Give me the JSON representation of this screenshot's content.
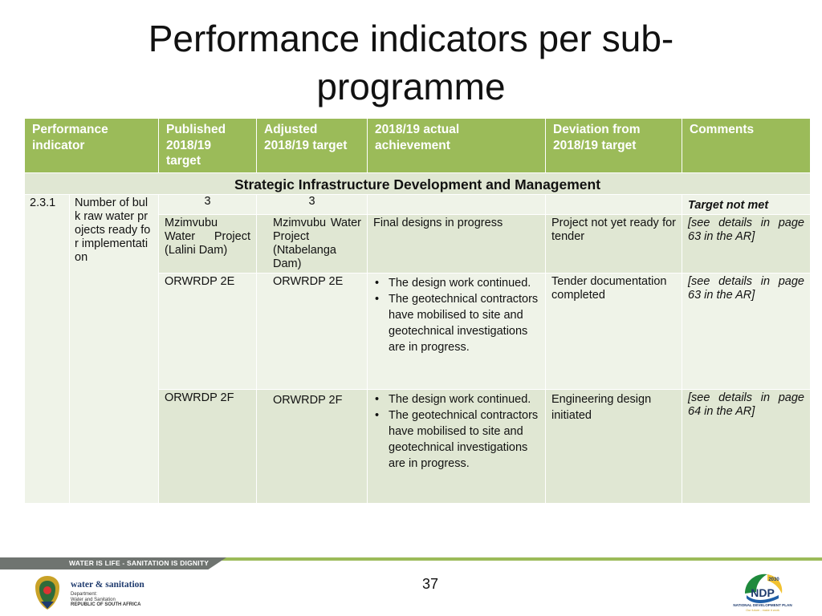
{
  "title": "Performance indicators per sub-programme",
  "table": {
    "headers": [
      "Performance indicator",
      "Published 2018/19 target",
      "Adjusted 2018/19 target",
      "2018/19 actual achievement",
      "Deviation from 2018/19 target",
      "Comments"
    ],
    "section_heading": "Strategic Infrastructure Development and Management",
    "indicator_number": "2.3.1",
    "indicator_name": "Number of bulk raw water projects ready for implementation",
    "summary_row": {
      "published": "3",
      "adjusted": "3",
      "comment": "Target not met"
    },
    "rows": [
      {
        "published": "Mzimvubu Water Project (Lalini Dam)",
        "adjusted": "Mzimvubu Water Project (Ntabelanga Dam)",
        "achievement": "Final designs in progress",
        "deviation": "Project not yet ready for tender",
        "comment": "[see details in page 63 in the AR]"
      },
      {
        "published": "ORWRDP 2E",
        "adjusted": "ORWRDP 2E",
        "achievement_bullets": [
          "The design work continued.",
          "The geotechnical contractors have mobilised to site and geotechnical investigations are in progress."
        ],
        "deviation": "Tender documentation completed",
        "comment": "[see details in page 63 in the AR]"
      },
      {
        "published": "ORWRDP 2F",
        "adjusted": "ORWRDP 2F",
        "achievement_bullets": [
          "The design work continued.",
          "The geotechnical contractors have mobilised to site and geotechnical investigations are in progress."
        ],
        "deviation": "Engineering design initiated",
        "comment": "[see details in page 64 in the AR]"
      }
    ]
  },
  "footer": {
    "slogan": "WATER IS LIFE - SANITATION IS DIGNITY",
    "page_number": "37",
    "dept_logo_name": "water & sanitation",
    "dept_logo_lines": [
      "Department:",
      "Water and Sanitation",
      "REPUBLIC OF SOUTH AFRICA"
    ],
    "ndp_logo_text": "NATIONAL DEVELOPMENT PLAN",
    "ndp_year": "2030",
    "ndp_tagline": "Our future - make it work"
  },
  "colors": {
    "header_green": "#9bbb59",
    "row_light": "#eff3e8",
    "row_dark": "#e0e7d3",
    "footer_grey": "#6f7470"
  }
}
